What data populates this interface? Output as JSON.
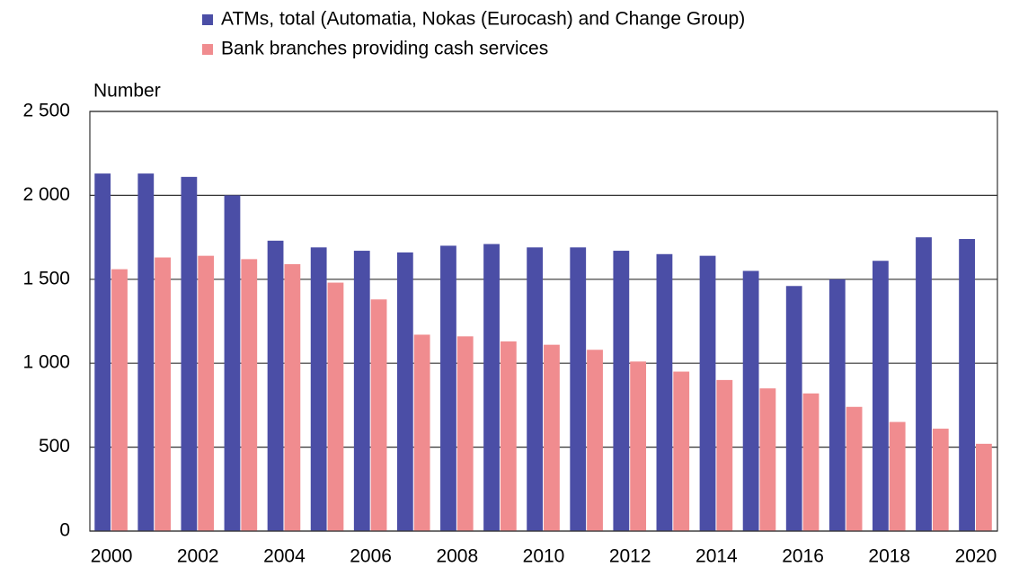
{
  "chart_data": {
    "type": "bar",
    "y_label": "Number",
    "categories": [
      "2000",
      null,
      "2002",
      null,
      "2004",
      null,
      "2006",
      null,
      "2008",
      null,
      "2010",
      null,
      "2012",
      null,
      "2014",
      null,
      "2016",
      null,
      "2018",
      null,
      "2020"
    ],
    "series": [
      {
        "name": "ATMs, total (Automatia, Nokas (Eurocash) and Change Group)",
        "color": "#4b4ea6",
        "values": [
          2130,
          2130,
          2110,
          2000,
          1730,
          1690,
          1670,
          1660,
          1700,
          1710,
          1690,
          1690,
          1670,
          1650,
          1640,
          1550,
          1460,
          1500,
          1610,
          1750,
          1740
        ]
      },
      {
        "name": "Bank branches providing cash services",
        "color": "#f08c8f",
        "values": [
          1560,
          1630,
          1640,
          1620,
          1590,
          1480,
          1380,
          1170,
          1160,
          1130,
          1110,
          1080,
          1010,
          950,
          900,
          850,
          820,
          740,
          650,
          610,
          520
        ]
      }
    ],
    "ylim": [
      0,
      2500
    ],
    "yticks": [
      0,
      500,
      {
        "value": 1000,
        "label": "1 000"
      },
      {
        "value": 1500,
        "label": "1 500"
      },
      {
        "value": 2000,
        "label": "2 000"
      },
      {
        "value": 2500,
        "label": "2 500"
      }
    ],
    "grid": true
  }
}
